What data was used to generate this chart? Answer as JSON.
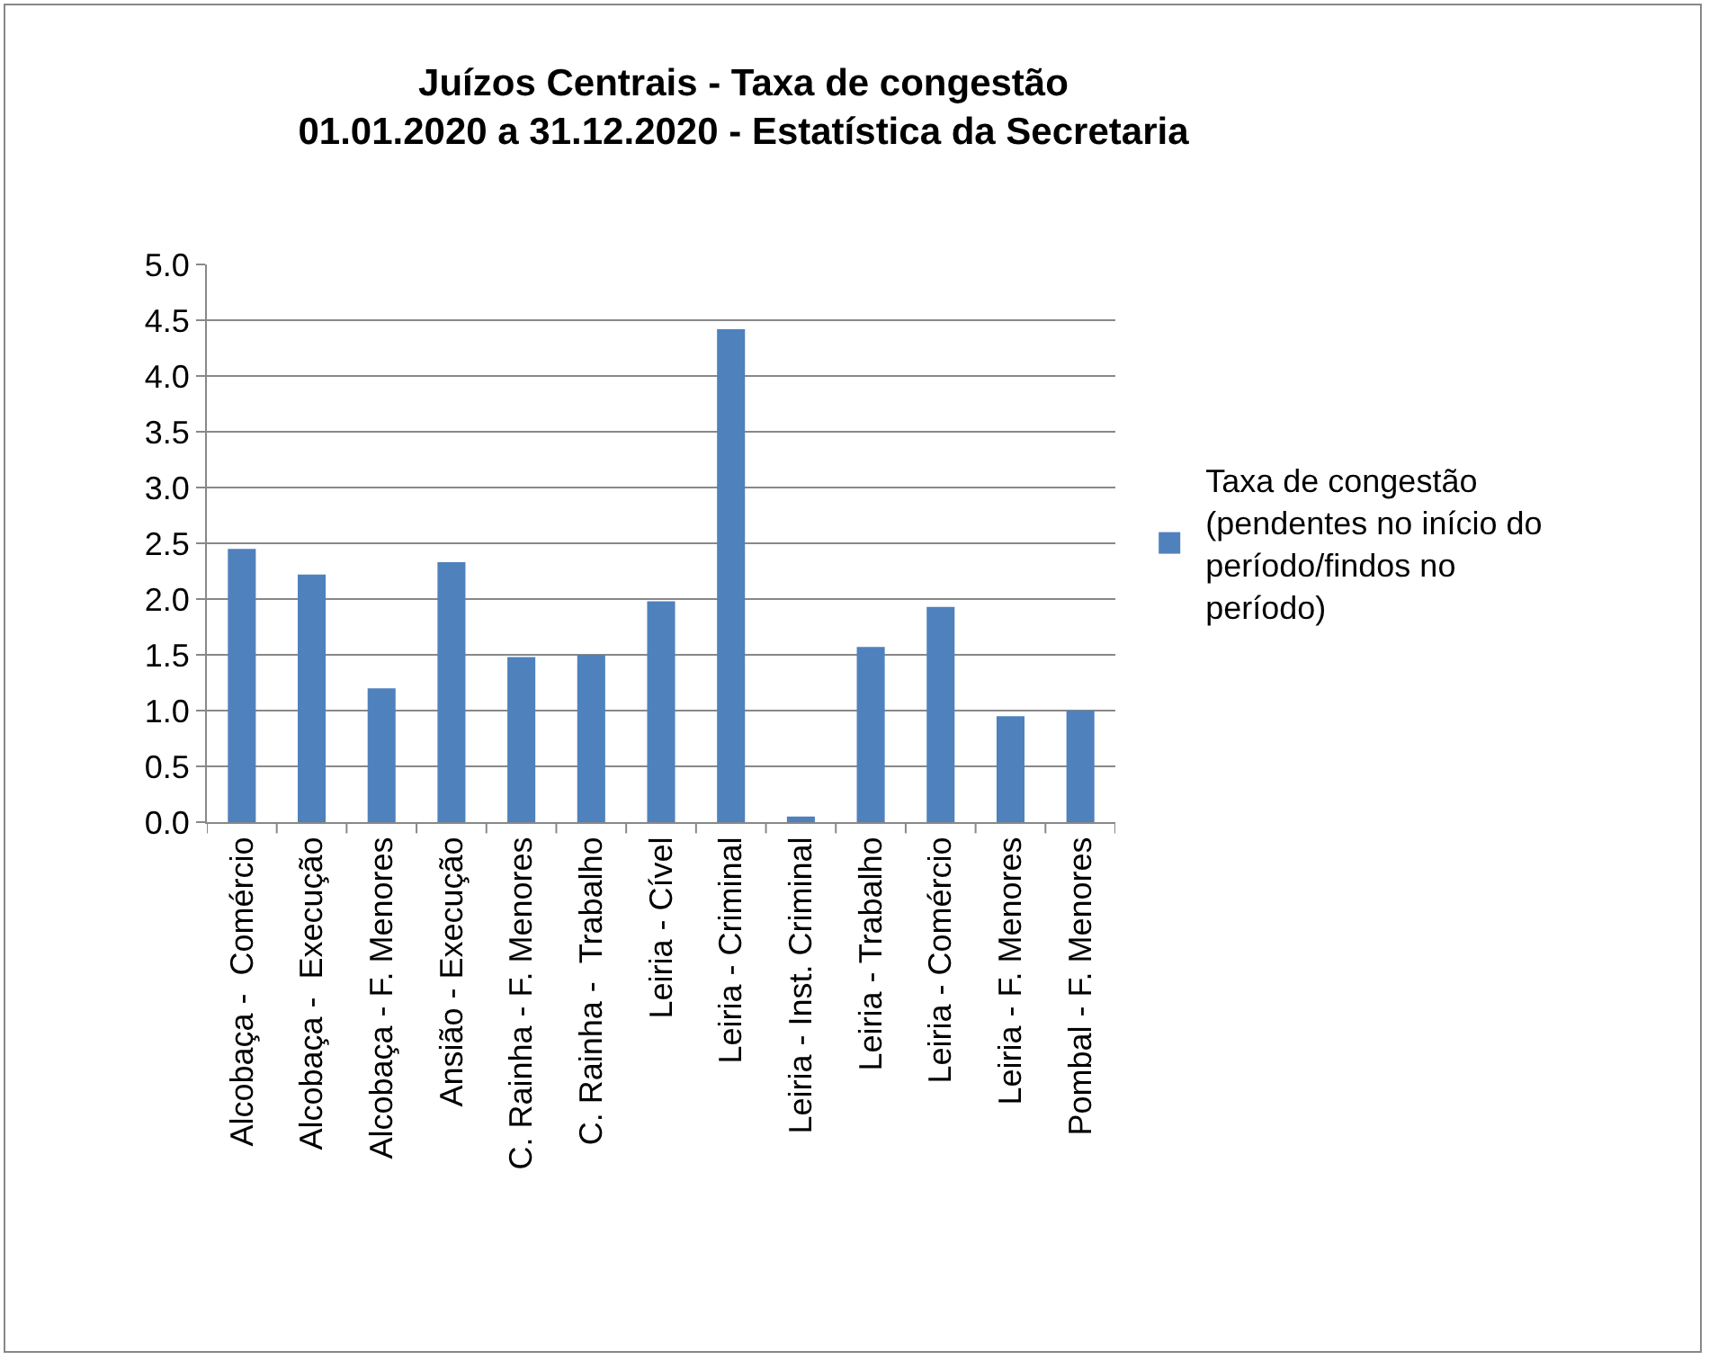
{
  "chart_data": {
    "type": "bar",
    "title": "Juízos Centrais - Taxa de congestão\n01.01.2020 a 31.12.2020 - Estatística da Secretaria",
    "categories": [
      "Alcobaça -  Comércio",
      "Alcobaça -  Execução",
      "Alcobaça - F. Menores",
      "Ansião - Execução",
      "C. Rainha - F. Menores",
      "C. Rainha -  Trabalho",
      "Leiria - Cível",
      "Leiria - Criminal",
      "Leiria - Inst. Criminal",
      "Leiria - Trabalho",
      "Leiria - Comércio",
      "Leiria - F. Menores",
      "Pombal - F. Menores"
    ],
    "series": [
      {
        "name": "Taxa de congestão (pendentes no início do período/findos no período)",
        "color": "#4f81bd",
        "values": [
          2.45,
          2.22,
          1.2,
          2.33,
          1.48,
          1.5,
          1.98,
          4.42,
          0.05,
          1.57,
          1.93,
          0.95,
          1.0
        ]
      }
    ],
    "ylim": [
      0,
      5
    ],
    "yticks": [
      {
        "value": 0,
        "label": "0.0"
      },
      0.5,
      {
        "value": 1,
        "label": "1.0"
      },
      1.5,
      {
        "value": 2,
        "label": "2.0"
      },
      2.5,
      {
        "value": 3,
        "label": "3.0"
      },
      3.5,
      {
        "value": 4,
        "label": "4.0"
      },
      4.5,
      {
        "value": 5,
        "label": "5.0"
      }
    ],
    "grid": "y",
    "legend": "right"
  }
}
